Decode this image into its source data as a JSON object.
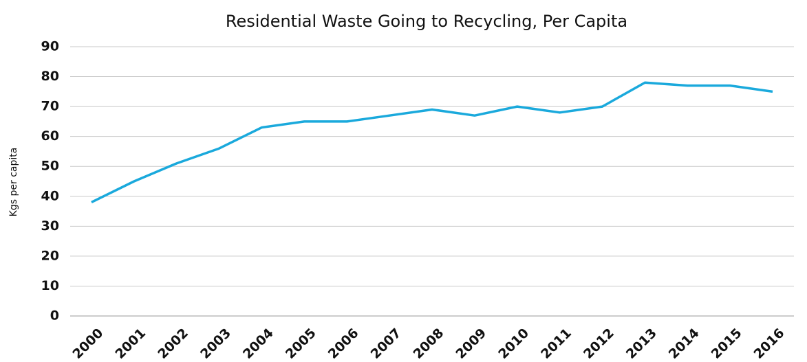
{
  "chart_data": {
    "type": "line",
    "title": "Residential Waste Going to Recycling, Per Capita",
    "y_label": "Kgs per capita",
    "categories": [
      "2000",
      "2001",
      "2002",
      "2003",
      "2004",
      "2005",
      "2006",
      "2007",
      "2008",
      "2009",
      "2010",
      "2011",
      "2012",
      "2013",
      "2014",
      "2015",
      "2016"
    ],
    "series": [
      {
        "name": "Kgs per capita",
        "color": "#1aa9dc",
        "values": [
          38,
          45,
          51,
          56,
          63,
          65,
          65,
          67,
          69,
          67,
          70,
          68,
          70,
          78,
          77,
          77,
          75
        ]
      }
    ],
    "ylim": [
      0,
      90
    ],
    "yticks": [
      0,
      10,
      20,
      30,
      40,
      50,
      60,
      70,
      80,
      90
    ],
    "grid": true,
    "legend": false
  }
}
